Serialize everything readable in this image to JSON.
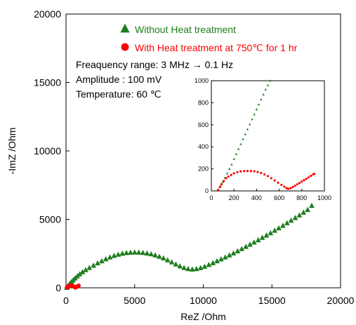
{
  "chart_data": [
    {
      "type": "scatter",
      "title": "",
      "xlabel": "ReZ /Ohm",
      "ylabel": "-ImZ /Ohm",
      "xlim": [
        0,
        20000
      ],
      "ylim": [
        0,
        20000
      ],
      "xticks": [
        "0",
        "5000",
        "10000",
        "15000",
        "20000"
      ],
      "yticks": [
        "0",
        "5000",
        "10000",
        "15000",
        "20000"
      ],
      "grid": false,
      "legend": "top-center",
      "series": [
        {
          "name": "Without Heat treatment",
          "marker": "triangle",
          "color": "#1e7d1e",
          "points": [
            [
              60,
              10
            ],
            [
              100,
              60
            ],
            [
              150,
              130
            ],
            [
              220,
              220
            ],
            [
              300,
              320
            ],
            [
              400,
              430
            ],
            [
              520,
              560
            ],
            [
              660,
              700
            ],
            [
              820,
              850
            ],
            [
              1000,
              1000
            ],
            [
              1200,
              1150
            ],
            [
              1430,
              1300
            ],
            [
              1700,
              1460
            ],
            [
              2000,
              1630
            ],
            [
              2300,
              1800
            ],
            [
              2600,
              1950
            ],
            [
              2900,
              2100
            ],
            [
              3200,
              2230
            ],
            [
              3500,
              2340
            ],
            [
              3800,
              2430
            ],
            [
              4100,
              2500
            ],
            [
              4400,
              2550
            ],
            [
              4700,
              2580
            ],
            [
              5000,
              2590
            ],
            [
              5300,
              2585
            ],
            [
              5600,
              2560
            ],
            [
              5900,
              2520
            ],
            [
              6200,
              2460
            ],
            [
              6500,
              2380
            ],
            [
              6800,
              2280
            ],
            [
              7100,
              2160
            ],
            [
              7400,
              2020
            ],
            [
              7700,
              1870
            ],
            [
              8000,
              1720
            ],
            [
              8300,
              1580
            ],
            [
              8600,
              1460
            ],
            [
              8900,
              1380
            ],
            [
              9200,
              1350
            ],
            [
              9500,
              1380
            ],
            [
              9800,
              1450
            ],
            [
              10100,
              1550
            ],
            [
              10400,
              1680
            ],
            [
              10700,
              1810
            ],
            [
              11000,
              1950
            ],
            [
              11300,
              2090
            ],
            [
              11600,
              2230
            ],
            [
              11900,
              2380
            ],
            [
              12200,
              2530
            ],
            [
              12500,
              2680
            ],
            [
              12800,
              2840
            ],
            [
              13100,
              3000
            ],
            [
              13400,
              3160
            ],
            [
              13700,
              3320
            ],
            [
              14000,
              3490
            ],
            [
              14300,
              3660
            ],
            [
              14600,
              3830
            ],
            [
              14900,
              4000
            ],
            [
              15200,
              4180
            ],
            [
              15500,
              4360
            ],
            [
              15800,
              4540
            ],
            [
              16100,
              4730
            ],
            [
              16400,
              4920
            ],
            [
              16700,
              5110
            ],
            [
              17000,
              5300
            ],
            [
              17300,
              5500
            ],
            [
              17600,
              5700
            ],
            [
              17900,
              6000
            ]
          ]
        },
        {
          "name": "With Heat treatment at 750℃ for 1 hr",
          "marker": "circle",
          "color": "#ff0000",
          "points": [
            [
              60,
              10
            ],
            [
              110,
              70
            ],
            [
              160,
              120
            ],
            [
              220,
              155
            ],
            [
              300,
              175
            ],
            [
              380,
              175
            ],
            [
              460,
              150
            ],
            [
              540,
              105
            ],
            [
              620,
              55
            ],
            [
              680,
              20
            ],
            [
              740,
              45
            ],
            [
              800,
              85
            ],
            [
              860,
              125
            ],
            [
              920,
              160
            ]
          ]
        }
      ],
      "annotations": [
        "Freaquency range: 3 MHz → 0.1 Hz",
        "Amplitude : 100 mV",
        "Temperature: 60 ℃"
      ]
    },
    {
      "type": "scatter",
      "title": "",
      "xlabel": "",
      "ylabel": "",
      "xlim": [
        0,
        1000
      ],
      "ylim": [
        0,
        1000
      ],
      "xticks": [
        "0",
        "200",
        "400",
        "600",
        "800",
        "1000"
      ],
      "yticks": [
        "0",
        "200",
        "400",
        "600",
        "800",
        "1000"
      ],
      "grid": false,
      "series": [
        {
          "name": "Without Heat treatment",
          "marker": "triangle",
          "color": "#1e7d1e",
          "points": [
            [
              60,
              10
            ],
            [
              80,
              45
            ],
            [
              100,
              80
            ],
            [
              120,
              120
            ],
            [
              140,
              160
            ],
            [
              160,
              200
            ],
            [
              180,
              240
            ],
            [
              200,
              290
            ],
            [
              220,
              335
            ],
            [
              240,
              380
            ],
            [
              260,
              425
            ],
            [
              280,
              470
            ],
            [
              300,
              515
            ],
            [
              320,
              560
            ],
            [
              340,
              605
            ],
            [
              360,
              650
            ],
            [
              380,
              695
            ],
            [
              400,
              740
            ],
            [
              420,
              785
            ],
            [
              440,
              830
            ],
            [
              460,
              875
            ],
            [
              480,
              920
            ],
            [
              500,
              960
            ],
            [
              520,
              1000
            ]
          ]
        },
        {
          "name": "With Heat treatment at 750℃ for 1 hr",
          "marker": "circle",
          "color": "#ff0000",
          "points": [
            [
              60,
              10
            ],
            [
              75,
              35
            ],
            [
              90,
              60
            ],
            [
              110,
              90
            ],
            [
              130,
              115
            ],
            [
              150,
              130
            ],
            [
              175,
              145
            ],
            [
              200,
              160
            ],
            [
              230,
              170
            ],
            [
              260,
              177
            ],
            [
              290,
              180
            ],
            [
              320,
              181
            ],
            [
              350,
              180
            ],
            [
              380,
              178
            ],
            [
              410,
              172
            ],
            [
              440,
              163
            ],
            [
              470,
              150
            ],
            [
              500,
              135
            ],
            [
              530,
              115
            ],
            [
              560,
              95
            ],
            [
              590,
              75
            ],
            [
              620,
              55
            ],
            [
              645,
              38
            ],
            [
              665,
              25
            ],
            [
              680,
              20
            ],
            [
              700,
              25
            ],
            [
              720,
              35
            ],
            [
              740,
              47
            ],
            [
              760,
              60
            ],
            [
              780,
              72
            ],
            [
              800,
              85
            ],
            [
              820,
              98
            ],
            [
              840,
              110
            ],
            [
              860,
              123
            ],
            [
              880,
              137
            ],
            [
              900,
              150
            ],
            [
              910,
              155
            ]
          ]
        }
      ]
    }
  ]
}
